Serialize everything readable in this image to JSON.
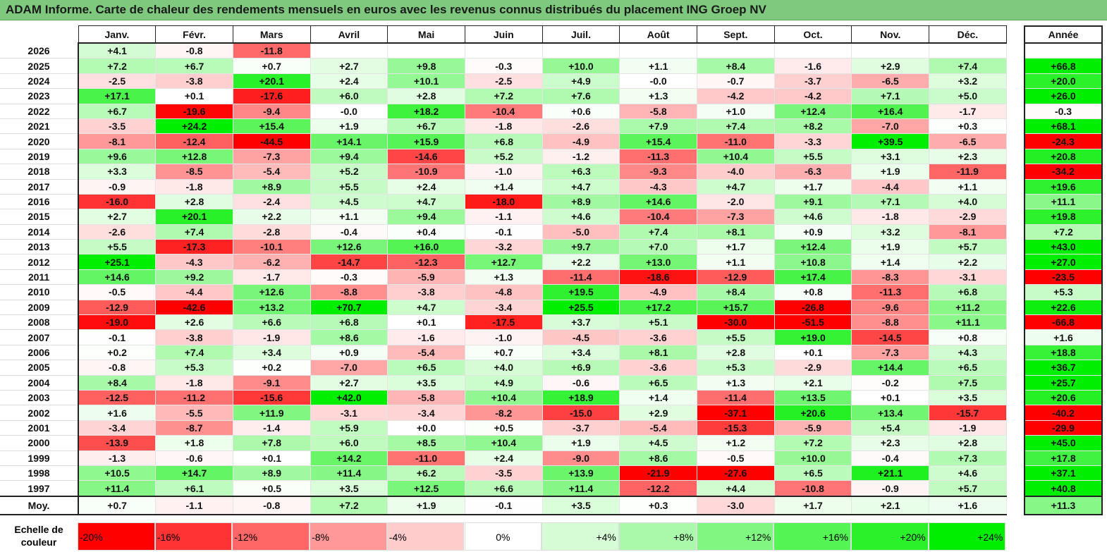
{
  "title": "ADAM Informe. Carte de chaleur des rendements mensuels en euros avec les revenus connus distribués du placement ING Groep NV",
  "annual_header": "Année",
  "avg_label": "Moy.",
  "scale_label_1": "Echelle de",
  "scale_label_2": "couleur",
  "scale": [
    "-20%",
    "-16%",
    "-12%",
    "-8%",
    "-4%",
    "0%",
    "+4%",
    "+8%",
    "+12%",
    "+16%",
    "+20%",
    "+24%"
  ],
  "chart_data": {
    "type": "heatmap",
    "title": "ADAM Informe. Carte de chaleur des rendements mensuels en euros avec les revenus connus distribués du placement ING Groep NV",
    "columns": [
      "Janv.",
      "Févr.",
      "Mars",
      "Avril",
      "Mai",
      "Juin",
      "Juil.",
      "Août",
      "Sept.",
      "Oct.",
      "Nov.",
      "Déc."
    ],
    "rows": [
      {
        "year": "2026",
        "values": [
          4.1,
          -0.8,
          -11.8,
          null,
          null,
          null,
          null,
          null,
          null,
          null,
          null,
          null
        ],
        "annual": null
      },
      {
        "year": "2025",
        "values": [
          7.2,
          6.7,
          0.7,
          2.7,
          9.8,
          -0.3,
          10.0,
          1.1,
          8.4,
          -1.6,
          2.9,
          7.4
        ],
        "annual": 66.8
      },
      {
        "year": "2024",
        "values": [
          -2.5,
          -3.8,
          20.1,
          2.4,
          10.1,
          -2.5,
          4.9,
          -0.0,
          -0.7,
          -3.7,
          -6.5,
          3.2
        ],
        "annual": 20.0
      },
      {
        "year": "2023",
        "values": [
          17.1,
          0.1,
          -17.6,
          6.0,
          2.8,
          7.2,
          7.6,
          1.3,
          -4.2,
          -4.2,
          7.1,
          5.0
        ],
        "annual": 26.0
      },
      {
        "year": "2022",
        "values": [
          6.7,
          -19.6,
          -9.4,
          -0.0,
          18.2,
          -10.4,
          0.6,
          -5.8,
          1.0,
          12.4,
          16.4,
          -1.7
        ],
        "annual": -0.3
      },
      {
        "year": "2021",
        "values": [
          -3.5,
          24.2,
          15.4,
          1.9,
          6.7,
          -1.8,
          -2.6,
          7.9,
          7.4,
          8.2,
          -7.0,
          0.3
        ],
        "annual": 68.1
      },
      {
        "year": "2020",
        "values": [
          -8.1,
          -12.4,
          -44.5,
          14.1,
          15.9,
          6.8,
          -4.9,
          15.4,
          -11.0,
          -3.3,
          39.5,
          -6.5
        ],
        "annual": -24.3
      },
      {
        "year": "2019",
        "values": [
          9.6,
          12.8,
          -7.3,
          9.4,
          -14.6,
          5.2,
          -1.2,
          -11.3,
          10.4,
          5.5,
          3.1,
          2.3
        ],
        "annual": 20.8
      },
      {
        "year": "2018",
        "values": [
          3.3,
          -8.5,
          -5.4,
          5.2,
          -10.9,
          -1.0,
          6.3,
          -9.3,
          -4.0,
          -6.3,
          1.9,
          -11.9
        ],
        "annual": -34.2
      },
      {
        "year": "2017",
        "values": [
          -0.9,
          -1.8,
          8.9,
          5.5,
          2.4,
          1.4,
          4.7,
          -4.3,
          4.7,
          1.7,
          -4.4,
          1.1
        ],
        "annual": 19.6
      },
      {
        "year": "2016",
        "values": [
          -16.0,
          2.8,
          -2.4,
          4.5,
          4.7,
          -18.0,
          8.9,
          14.6,
          -2.0,
          9.1,
          7.1,
          4.0
        ],
        "annual": 11.1
      },
      {
        "year": "2015",
        "values": [
          2.7,
          20.1,
          2.2,
          1.1,
          9.4,
          -1.1,
          4.6,
          -10.4,
          -7.3,
          4.6,
          -1.8,
          -2.9
        ],
        "annual": 19.8
      },
      {
        "year": "2014",
        "values": [
          -2.6,
          7.4,
          -2.8,
          -0.4,
          0.4,
          -0.1,
          -5.0,
          7.4,
          8.1,
          0.9,
          3.2,
          -8.1
        ],
        "annual": 7.2
      },
      {
        "year": "2013",
        "values": [
          5.5,
          -17.3,
          -10.1,
          12.6,
          16.0,
          -3.2,
          9.7,
          7.0,
          1.7,
          12.4,
          1.9,
          5.7
        ],
        "annual": 43.0
      },
      {
        "year": "2012",
        "values": [
          25.1,
          -4.3,
          -6.2,
          -14.7,
          -12.3,
          12.7,
          2.2,
          13.0,
          1.1,
          10.8,
          1.4,
          2.2
        ],
        "annual": 27.0
      },
      {
        "year": "2011",
        "values": [
          14.6,
          9.2,
          -1.7,
          -0.3,
          -5.9,
          1.3,
          -11.4,
          -18.6,
          -12.9,
          17.4,
          -8.3,
          -3.1
        ],
        "annual": -23.5
      },
      {
        "year": "2010",
        "values": [
          -0.5,
          -4.4,
          12.6,
          -8.8,
          -3.8,
          -4.8,
          19.5,
          -4.9,
          8.4,
          0.8,
          -11.3,
          6.8
        ],
        "annual": 5.3
      },
      {
        "year": "2009",
        "values": [
          -12.9,
          -42.6,
          13.2,
          70.7,
          4.7,
          -3.4,
          25.5,
          17.2,
          15.7,
          -26.8,
          -9.6,
          11.2
        ],
        "annual": 22.6
      },
      {
        "year": "2008",
        "values": [
          -19.0,
          2.6,
          6.6,
          6.8,
          0.1,
          -17.5,
          3.7,
          5.1,
          -30.0,
          -51.5,
          -8.8,
          11.1
        ],
        "annual": -66.8
      },
      {
        "year": "2007",
        "values": [
          -0.1,
          -3.8,
          -1.9,
          8.6,
          -1.6,
          -1.0,
          -4.5,
          -3.6,
          5.5,
          19.0,
          -14.5,
          0.8
        ],
        "annual": 1.6
      },
      {
        "year": "2006",
        "values": [
          0.2,
          7.4,
          3.4,
          0.9,
          -5.4,
          0.7,
          3.4,
          8.1,
          2.8,
          0.1,
          -7.3,
          4.3
        ],
        "annual": 18.8
      },
      {
        "year": "2005",
        "values": [
          -0.8,
          5.3,
          0.2,
          -7.0,
          6.5,
          4.0,
          6.9,
          -3.6,
          5.3,
          -2.9,
          14.4,
          6.5
        ],
        "annual": 36.7
      },
      {
        "year": "2004",
        "values": [
          8.4,
          -1.8,
          -9.1,
          2.7,
          3.5,
          4.9,
          -0.6,
          6.5,
          1.3,
          2.1,
          -0.2,
          7.5
        ],
        "annual": 25.7
      },
      {
        "year": "2003",
        "values": [
          -12.5,
          -11.2,
          -15.6,
          42.0,
          -5.8,
          10.4,
          18.9,
          1.4,
          -11.4,
          13.5,
          0.1,
          3.5
        ],
        "annual": 20.6
      },
      {
        "year": "2002",
        "values": [
          1.6,
          -5.5,
          11.9,
          -3.1,
          -3.4,
          -8.2,
          -15.0,
          2.9,
          -37.1,
          20.6,
          13.4,
          -15.7
        ],
        "annual": -40.2
      },
      {
        "year": "2001",
        "values": [
          -3.4,
          -8.7,
          -1.4,
          5.9,
          0.0,
          0.5,
          -3.7,
          -5.4,
          -15.3,
          -5.9,
          5.4,
          -1.9
        ],
        "annual": -29.9
      },
      {
        "year": "2000",
        "values": [
          -13.9,
          1.8,
          7.8,
          6.0,
          8.5,
          10.4,
          1.9,
          4.5,
          1.2,
          7.2,
          2.3,
          2.8
        ],
        "annual": 45.0
      },
      {
        "year": "1999",
        "values": [
          -1.3,
          -0.6,
          0.1,
          14.2,
          -11.0,
          2.4,
          -9.0,
          8.6,
          -0.5,
          10.0,
          -0.4,
          7.3
        ],
        "annual": 17.8
      },
      {
        "year": "1998",
        "values": [
          10.5,
          14.7,
          8.9,
          11.4,
          6.2,
          -3.5,
          13.9,
          -21.9,
          -27.6,
          6.5,
          21.1,
          4.6
        ],
        "annual": 37.1
      },
      {
        "year": "1997",
        "values": [
          11.4,
          6.1,
          0.5,
          3.5,
          12.5,
          6.6,
          11.4,
          -12.2,
          4.4,
          -10.8,
          -0.9,
          5.7
        ],
        "annual": 40.8
      }
    ],
    "average": {
      "values": [
        0.7,
        -1.1,
        -0.8,
        7.2,
        1.9,
        -0.1,
        3.5,
        0.3,
        -3.0,
        1.7,
        2.1,
        1.6
      ],
      "annual": 11.3
    },
    "color_scale": {
      "min": -20,
      "max": 24,
      "neg": "#ff0000",
      "zero": "#ffffff",
      "pos": "#00ee00"
    }
  }
}
